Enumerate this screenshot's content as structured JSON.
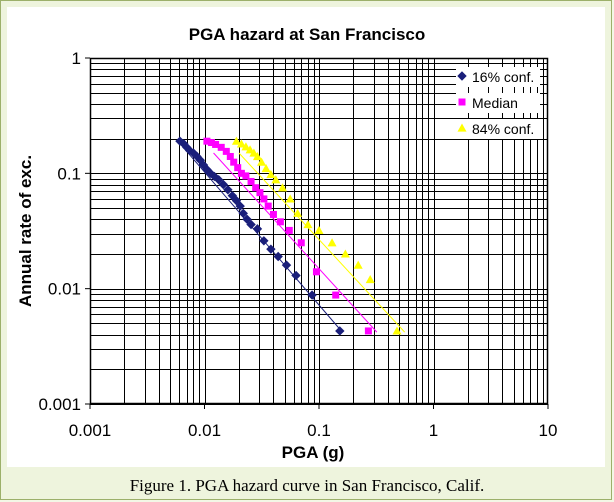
{
  "chart_data": {
    "type": "scatter",
    "title": "PGA hazard at San Francisco",
    "xlabel": "PGA (g)",
    "ylabel": "Annual rate of exc.",
    "xscale": "log",
    "yscale": "log",
    "xlim": [
      0.001,
      10
    ],
    "ylim": [
      0.001,
      1
    ],
    "x_tick_labels": [
      "0.001",
      "0.01",
      "0.1",
      "1",
      "10"
    ],
    "y_tick_labels": [
      "1",
      "0.1",
      "0.01",
      "0.001"
    ],
    "grid": "major and minor",
    "legend_position": "top-right",
    "series": [
      {
        "name": "16% conf.",
        "color": "#1a1f7a",
        "marker": "diamond",
        "x": [
          0.0061,
          0.0066,
          0.007,
          0.0074,
          0.008,
          0.0086,
          0.0092,
          0.0098,
          0.0105,
          0.0113,
          0.0122,
          0.0133,
          0.0146,
          0.016,
          0.0175,
          0.019,
          0.0205,
          0.0218,
          0.0235,
          0.0255,
          0.029,
          0.033,
          0.038,
          0.044,
          0.052,
          0.063,
          0.087,
          0.152
        ],
        "y": [
          0.19,
          0.18,
          0.168,
          0.158,
          0.15,
          0.14,
          0.13,
          0.118,
          0.108,
          0.1,
          0.094,
          0.088,
          0.08,
          0.072,
          0.064,
          0.058,
          0.052,
          0.045,
          0.04,
          0.036,
          0.033,
          0.026,
          0.022,
          0.019,
          0.016,
          0.013,
          0.0088,
          0.0043
        ],
        "trendline": [
          [
            0.0072,
            0.15
          ],
          [
            0.16,
            0.0042
          ]
        ]
      },
      {
        "name": "Median",
        "color": "#ff00ff",
        "marker": "square",
        "x": [
          0.0105,
          0.0115,
          0.0125,
          0.014,
          0.0155,
          0.0168,
          0.018,
          0.0195,
          0.021,
          0.023,
          0.0255,
          0.028,
          0.0305,
          0.033,
          0.036,
          0.04,
          0.046,
          0.055,
          0.07,
          0.095,
          0.14,
          0.27
        ],
        "y": [
          0.19,
          0.185,
          0.178,
          0.168,
          0.155,
          0.14,
          0.125,
          0.112,
          0.1,
          0.095,
          0.085,
          0.075,
          0.068,
          0.06,
          0.052,
          0.044,
          0.038,
          0.032,
          0.025,
          0.014,
          0.0088,
          0.0043
        ],
        "trendline": [
          [
            0.012,
            0.15
          ],
          [
            0.32,
            0.0042
          ]
        ]
      },
      {
        "name": "84% conf.",
        "color": "#ffff00",
        "marker": "triangle",
        "x": [
          0.019,
          0.021,
          0.023,
          0.025,
          0.027,
          0.029,
          0.0315,
          0.0345,
          0.038,
          0.042,
          0.048,
          0.056,
          0.065,
          0.08,
          0.1,
          0.13,
          0.17,
          0.22,
          0.28,
          0.48
        ],
        "y": [
          0.19,
          0.18,
          0.17,
          0.16,
          0.15,
          0.14,
          0.125,
          0.11,
          0.098,
          0.088,
          0.075,
          0.06,
          0.045,
          0.036,
          0.032,
          0.025,
          0.02,
          0.016,
          0.012,
          0.0043
        ],
        "trendline": [
          [
            0.02,
            0.15
          ],
          [
            0.56,
            0.0042
          ]
        ]
      }
    ]
  },
  "caption": "Figure 1. PGA hazard curve in San Francisco, Calif."
}
